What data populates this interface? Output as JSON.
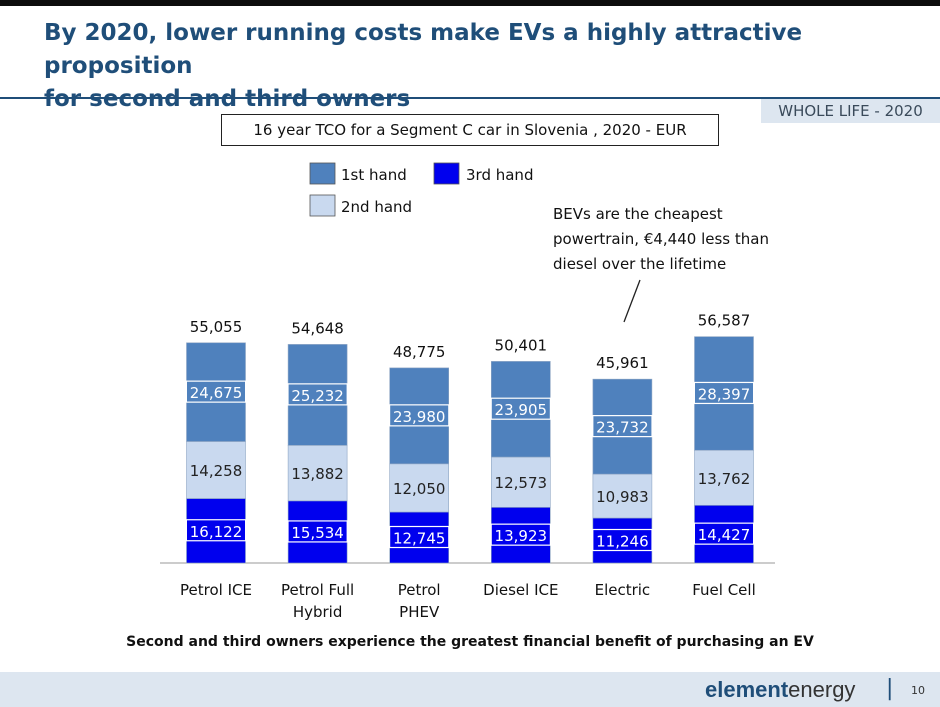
{
  "header": {
    "title_line1": "By 2020, lower running costs make EVs a highly attractive proposition",
    "title_line2": "for second and third owners",
    "badge": "WHOLE LIFE - 2020"
  },
  "chart_data": {
    "type": "bar",
    "stacked": true,
    "title": "16 year TCO for a Segment C car in Slovenia , 2020 - EUR",
    "categories": [
      [
        "Petrol ICE"
      ],
      [
        "Petrol Full",
        "Hybrid"
      ],
      [
        "Petrol",
        "PHEV"
      ],
      [
        "Diesel ICE"
      ],
      [
        "Electric"
      ],
      [
        "Fuel Cell"
      ]
    ],
    "series": [
      {
        "name": "3rd hand",
        "color": "#0000ee",
        "values": [
          16122,
          15534,
          12745,
          13923,
          11246,
          14427
        ]
      },
      {
        "name": "2nd hand",
        "color": "#c9d9ef",
        "values": [
          14258,
          13882,
          12050,
          12573,
          10983,
          13762
        ]
      },
      {
        "name": "1st hand",
        "color": "#4f81bd",
        "values": [
          24675,
          25232,
          23980,
          23905,
          23732,
          28397
        ]
      }
    ],
    "series_labels": [
      [
        "16,122",
        "15,534",
        "12,745",
        "13,923",
        "11,246",
        "14,427"
      ],
      [
        "14,258",
        "13,882",
        "12,050",
        "12,573",
        "10,983",
        "13,762"
      ],
      [
        "24,675",
        "25,232",
        "23,980",
        "23,905",
        "23,732",
        "28,397"
      ]
    ],
    "totals": [
      "55,055",
      "54,648",
      "48,775",
      "50,401",
      "45,961",
      "56,587"
    ],
    "legend_order": [
      "1st hand",
      "3rd hand",
      "2nd hand"
    ],
    "annotation": {
      "lines": [
        "BEVs are the cheapest",
        "powertrain, €4,440 less than",
        "diesel over the lifetime"
      ],
      "target_category": "Electric"
    },
    "ylim": [
      0,
      60000
    ],
    "xlabel": "",
    "ylabel": ""
  },
  "footer": {
    "conclusion": "Second and third owners experience the greatest financial benefit of purchasing an EV",
    "logo_bold": "element",
    "logo_rest": "energy",
    "logo_sep": "|",
    "page_number": "10"
  }
}
